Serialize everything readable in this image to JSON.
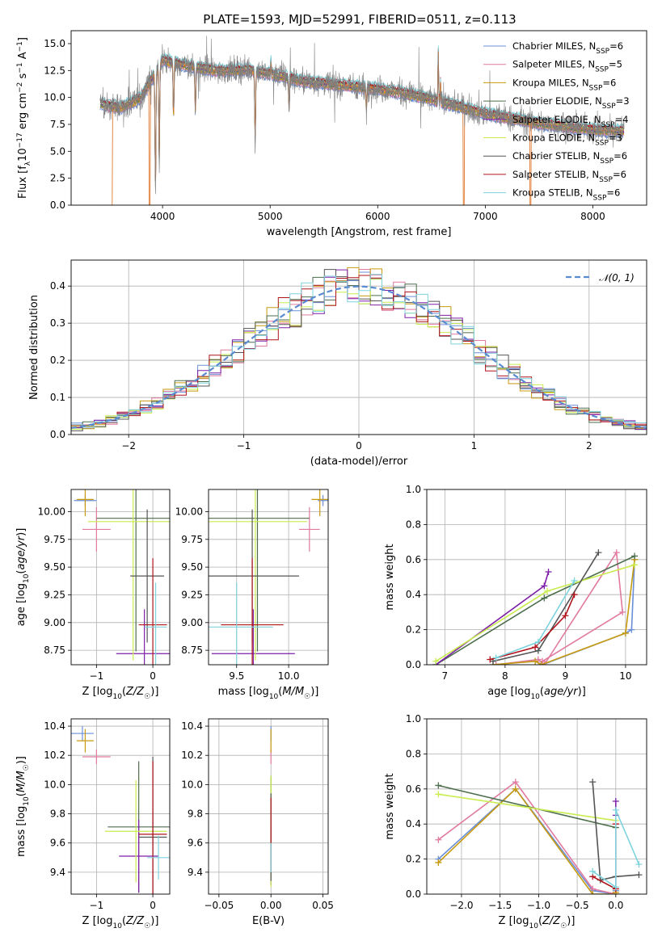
{
  "title": "PLATE=1593, MJD=52991, FIBERID=0511, z=0.113",
  "colors": {
    "Chabrier MILES": "#6b8fd6",
    "Salpeter MILES": "#e07aa0",
    "Kroupa MILES": "#c79a10",
    "Chabrier ELODIE": "#4d6e4d",
    "Salpeter ELODIE": "#7e1fa8",
    "Kroupa ELODIE": "#c9ec4f",
    "Chabrier STELIB": "#555555",
    "Salpeter STELIB": "#b0141b",
    "Kroupa STELIB": "#7fd3dd",
    "model_orange": "#e0782f",
    "data_gray": "#808080",
    "normal_curve": "#5b8bd0"
  },
  "chart_data": [
    {
      "id": "spectrum",
      "type": "line",
      "xlabel": "wavelength [Angstrom, rest frame]",
      "ylabel": "Flux [f_λ10^-17 erg cm^-2 s^-1 A^-1]",
      "xlim": [
        3150,
        8500
      ],
      "ylim": [
        0,
        16.2
      ],
      "xticks": [
        4000,
        5000,
        6000,
        7000,
        8000
      ],
      "yticks": [
        0.0,
        2.5,
        5.0,
        7.5,
        10.0,
        12.5,
        15.0
      ],
      "grid": false,
      "legend_position": "top-right",
      "legend": [
        {
          "main": "Chabrier MILES, N",
          "sub": "SSP",
          "tail": "=6"
        },
        {
          "main": "Salpeter MILES, N",
          "sub": "SSP",
          "tail": "=5"
        },
        {
          "main": "Kroupa MILES, N",
          "sub": "SSP",
          "tail": "=6"
        },
        {
          "main": "Chabrier ELODIE, N",
          "sub": "SSP",
          "tail": "=3"
        },
        {
          "main": "Salpeter ELODIE, N",
          "sub": "SSP",
          "tail": "=4"
        },
        {
          "main": "Kroupa ELODIE, N",
          "sub": "SSP",
          "tail": "=3"
        },
        {
          "main": "Chabrier STELIB, N",
          "sub": "SSP",
          "tail": "=6"
        },
        {
          "main": "Salpeter STELIB, N",
          "sub": "SSP",
          "tail": "=6"
        },
        {
          "main": "Kroupa STELIB, N",
          "sub": "SSP",
          "tail": "=6"
        }
      ],
      "continuum": [
        [
          3400,
          9.5
        ],
        [
          3600,
          9.0
        ],
        [
          3800,
          10.0
        ],
        [
          4000,
          13.5
        ],
        [
          4200,
          13.0
        ],
        [
          4500,
          12.5
        ],
        [
          4800,
          12.6
        ],
        [
          5000,
          12.2
        ],
        [
          5300,
          11.5
        ],
        [
          5600,
          11.2
        ],
        [
          6000,
          10.8
        ],
        [
          6300,
          10.3
        ],
        [
          6600,
          9.6
        ],
        [
          7000,
          8.5
        ],
        [
          7500,
          7.6
        ],
        [
          8000,
          7.0
        ],
        [
          8300,
          6.9
        ]
      ],
      "absorption_lines": [
        [
          3934,
          12.0
        ],
        [
          3969,
          9.5
        ],
        [
          4102,
          5.5
        ],
        [
          4305,
          4.5
        ],
        [
          4861,
          7.0
        ],
        [
          5176,
          3.0
        ],
        [
          5895,
          2.0
        ]
      ],
      "emission_lines": [
        [
          6563,
          5.5
        ],
        [
          6584,
          2.0
        ],
        [
          5007,
          1.5
        ]
      ],
      "model_dropouts": [
        3530,
        3880,
        6800,
        7420
      ]
    },
    {
      "id": "residuals",
      "type": "histogram",
      "xlabel": "(data-model)/error",
      "ylabel": "Normed distribution",
      "xlim": [
        -2.5,
        2.5
      ],
      "ylim": [
        0,
        0.47
      ],
      "xticks": [
        -2,
        -1,
        0,
        1,
        2
      ],
      "yticks": [
        0.0,
        0.1,
        0.2,
        0.3,
        0.4
      ],
      "grid": true,
      "legend_position": "top-right",
      "normal_label": "𝒩(0, 1)",
      "bin_width": 0.1
    },
    {
      "id": "age_vs_Z",
      "type": "errorbar",
      "xlabel": "Z [log10(Z/Z☉)]",
      "ylabel": "age [log10(age/yr)]",
      "xlim": [
        -1.45,
        0.3
      ],
      "ylim": [
        8.62,
        10.2
      ],
      "xticks": [
        -1,
        0
      ],
      "yticks": [
        8.75,
        9.0,
        9.25,
        9.5,
        9.75,
        10.0
      ],
      "grid": true,
      "series": [
        {
          "model": "Chabrier MILES",
          "x": -1.2,
          "xerr": 0.2,
          "y": 10.1,
          "yerr": 0.05
        },
        {
          "model": "Salpeter MILES",
          "x": -1.0,
          "xerr": 0.25,
          "y": 9.84,
          "yerr": 0.2
        },
        {
          "model": "Kroupa MILES",
          "x": -1.2,
          "xerr": 0.15,
          "y": 10.11,
          "yerr": 0.15
        },
        {
          "model": "Chabrier ELODIE",
          "x": -0.3,
          "xerr": 0.7,
          "y": 9.94,
          "yerr": 1.2
        },
        {
          "model": "Salpeter ELODIE",
          "x": -0.15,
          "xerr": 0.5,
          "y": 8.72,
          "yerr": 0.4
        },
        {
          "model": "Kroupa ELODIE",
          "x": -0.35,
          "xerr": 0.8,
          "y": 9.91,
          "yerr": 1.25
        },
        {
          "model": "Chabrier STELIB",
          "x": -0.1,
          "xerr": 0.3,
          "y": 9.42,
          "yerr": 0.6
        },
        {
          "model": "Salpeter STELIB",
          "x": 0.0,
          "xerr": 0.25,
          "y": 8.98,
          "yerr": 0.6
        },
        {
          "model": "Kroupa STELIB",
          "x": 0.05,
          "xerr": 0.2,
          "y": 8.96,
          "yerr": 0.4
        }
      ]
    },
    {
      "id": "age_vs_mass",
      "type": "errorbar",
      "xlabel": "mass [log10(M/M☉)]",
      "ylabel": "",
      "xlim": [
        9.23,
        10.38
      ],
      "ylim": [
        8.62,
        10.2
      ],
      "xticks": [
        9.5,
        10.0
      ],
      "yticks": [
        8.75,
        9.0,
        9.25,
        9.5,
        9.75,
        10.0
      ],
      "grid": true,
      "series": [
        {
          "model": "Chabrier MILES",
          "x": 10.33,
          "xerr": 0.05,
          "y": 10.1,
          "yerr": 0.05
        },
        {
          "model": "Salpeter MILES",
          "x": 10.2,
          "xerr": 0.1,
          "y": 9.84,
          "yerr": 0.2
        },
        {
          "model": "Kroupa MILES",
          "x": 10.3,
          "xerr": 0.08,
          "y": 10.11,
          "yerr": 0.15
        },
        {
          "model": "Chabrier ELODIE",
          "x": 9.7,
          "xerr": 0.5,
          "y": 9.94,
          "yerr": 1.2
        },
        {
          "model": "Salpeter ELODIE",
          "x": 9.66,
          "xerr": 0.4,
          "y": 8.72,
          "yerr": 0.4
        },
        {
          "model": "Kroupa ELODIE",
          "x": 9.68,
          "xerr": 0.5,
          "y": 9.91,
          "yerr": 1.25
        },
        {
          "model": "Chabrier STELIB",
          "x": 9.65,
          "xerr": 0.45,
          "y": 9.42,
          "yerr": 0.6
        },
        {
          "model": "Salpeter STELIB",
          "x": 9.65,
          "xerr": 0.3,
          "y": 8.98,
          "yerr": 0.6
        },
        {
          "model": "Kroupa STELIB",
          "x": 9.5,
          "xerr": 0.35,
          "y": 8.96,
          "yerr": 0.4
        }
      ]
    },
    {
      "id": "weight_vs_age",
      "type": "line",
      "xlabel": "age log10(age/yr)",
      "ylabel": "mass weight",
      "xlim": [
        6.7,
        10.35
      ],
      "ylim": [
        0,
        1.0
      ],
      "xticks": [
        7,
        8,
        9,
        10
      ],
      "yticks": [
        0.0,
        0.2,
        0.4,
        0.6,
        0.8,
        1.0
      ],
      "grid": true,
      "series": [
        {
          "model": "Chabrier MILES",
          "x": [
            7.8,
            8.5,
            8.62,
            10.0,
            10.1,
            10.15
          ],
          "y": [
            0.0,
            0.02,
            0.0,
            0.18,
            0.2,
            0.6
          ]
        },
        {
          "model": "Salpeter MILES",
          "x": [
            7.85,
            8.55,
            8.65,
            9.85,
            9.95,
            8.62
          ],
          "y": [
            0.0,
            0.03,
            0.0,
            0.64,
            0.3,
            0.02
          ]
        },
        {
          "model": "Kroupa MILES",
          "x": [
            7.8,
            8.5,
            8.6,
            10.0,
            10.15
          ],
          "y": [
            0.0,
            0.02,
            0.0,
            0.18,
            0.6
          ]
        },
        {
          "model": "Chabrier ELODIE",
          "x": [
            6.85,
            8.65,
            10.15
          ],
          "y": [
            0.0,
            0.38,
            0.62
          ]
        },
        {
          "model": "Salpeter ELODIE",
          "x": [
            6.85,
            8.65,
            8.72
          ],
          "y": [
            0.0,
            0.45,
            0.53
          ]
        },
        {
          "model": "Kroupa ELODIE",
          "x": [
            6.85,
            8.7,
            10.15
          ],
          "y": [
            0.02,
            0.42,
            0.57
          ]
        },
        {
          "model": "Chabrier STELIB",
          "x": [
            7.8,
            8.55,
            9.55
          ],
          "y": [
            0.02,
            0.08,
            0.64
          ]
        },
        {
          "model": "Salpeter STELIB",
          "x": [
            7.75,
            8.5,
            9.0,
            9.15
          ],
          "y": [
            0.03,
            0.1,
            0.28,
            0.4
          ]
        },
        {
          "model": "Kroupa STELIB",
          "x": [
            7.85,
            8.55,
            9.15
          ],
          "y": [
            0.04,
            0.13,
            0.48
          ]
        }
      ]
    },
    {
      "id": "mass_vs_Z",
      "type": "errorbar",
      "xlabel": "Z [log10(Z/Z☉)]",
      "ylabel": "mass [log10(M/M☉)]",
      "xlim": [
        -1.45,
        0.3
      ],
      "ylim": [
        9.25,
        10.45
      ],
      "xticks": [
        -1,
        0
      ],
      "yticks": [
        9.4,
        9.6,
        9.8,
        10.0,
        10.2,
        10.4
      ],
      "grid": true,
      "series": [
        {
          "model": "Chabrier MILES",
          "x": -1.25,
          "xerr": 0.2,
          "y": 10.35,
          "yerr": 0.05
        },
        {
          "model": "Salpeter MILES",
          "x": -1.0,
          "xerr": 0.25,
          "y": 10.19,
          "yerr": 0.05
        },
        {
          "model": "Kroupa MILES",
          "x": -1.2,
          "xerr": 0.15,
          "y": 10.3,
          "yerr": 0.08
        },
        {
          "model": "Chabrier ELODIE",
          "x": -0.25,
          "xerr": 0.55,
          "y": 9.71,
          "yerr": 0.45
        },
        {
          "model": "Salpeter ELODIE",
          "x": -0.25,
          "xerr": 0.35,
          "y": 9.51,
          "yerr": 0.25
        },
        {
          "model": "Kroupa ELODIE",
          "x": -0.3,
          "xerr": 0.55,
          "y": 9.68,
          "yerr": 0.35
        },
        {
          "model": "Chabrier STELIB",
          "x": 0.0,
          "xerr": 0.25,
          "y": 9.64,
          "yerr": 0.55
        },
        {
          "model": "Salpeter STELIB",
          "x": 0.0,
          "xerr": 0.25,
          "y": 9.66,
          "yerr": 0.5
        },
        {
          "model": "Kroupa STELIB",
          "x": 0.1,
          "xerr": 0.2,
          "y": 9.5,
          "yerr": 0.15
        }
      ]
    },
    {
      "id": "mass_vs_EBV",
      "type": "errorbar",
      "xlabel": "E(B-V)",
      "ylabel": "",
      "xlim": [
        -0.06,
        0.055
      ],
      "ylim": [
        9.25,
        10.45
      ],
      "xticks": [
        -0.05,
        0.0,
        0.05
      ],
      "xticklabels": [
        "−0.05",
        "0.00",
        "0.05"
      ],
      "yticks": [
        9.4,
        9.6,
        9.8,
        10.0,
        10.2,
        10.4
      ],
      "grid": true,
      "series": [
        {
          "model": "Chabrier MILES",
          "x": 0.0,
          "y": 10.35,
          "yerr": 0.05
        },
        {
          "model": "Salpeter MILES",
          "x": 0.0,
          "y": 10.19,
          "yerr": 0.05
        },
        {
          "model": "Kroupa MILES",
          "x": 0.0,
          "y": 10.3,
          "yerr": 0.08
        },
        {
          "model": "Chabrier ELODIE",
          "x": 0.0,
          "y": 9.71,
          "yerr": 0.35
        },
        {
          "model": "Salpeter ELODIE",
          "x": 0.0,
          "y": 9.51,
          "yerr": 0.2
        },
        {
          "model": "Kroupa ELODIE",
          "x": 0.0,
          "y": 9.68,
          "yerr": 0.38
        },
        {
          "model": "Chabrier STELIB",
          "x": 0.0,
          "y": 9.64,
          "yerr": 0.3
        },
        {
          "model": "Salpeter STELIB",
          "x": 0.0,
          "y": 9.66,
          "yerr": 0.25
        },
        {
          "model": "Kroupa STELIB",
          "x": 0.0,
          "y": 9.5,
          "yerr": 0.1
        }
      ]
    },
    {
      "id": "weight_vs_Z",
      "type": "line",
      "xlabel": "Z [log10(Z/Z☉)]",
      "ylabel": "mass weight",
      "xlim": [
        -2.45,
        0.4
      ],
      "ylim": [
        0,
        1.0
      ],
      "xticks": [
        -2.0,
        -1.5,
        -1.0,
        -0.5,
        0.0
      ],
      "xticklabels": [
        "−2.0",
        "−1.5",
        "−1.0",
        "−0.5",
        "0.0"
      ],
      "yticks": [
        0.0,
        0.2,
        0.4,
        0.6,
        0.8,
        1.0
      ],
      "grid": true,
      "series": [
        {
          "model": "Chabrier MILES",
          "x": [
            -2.3,
            -1.3,
            -0.3,
            0.0,
            0.0
          ],
          "y": [
            0.2,
            0.6,
            0.02,
            0.0,
            0.02
          ]
        },
        {
          "model": "Salpeter MILES",
          "x": [
            -2.3,
            -1.3,
            -0.3,
            0.0,
            0.0
          ],
          "y": [
            0.31,
            0.64,
            0.03,
            0.0,
            0.03
          ]
        },
        {
          "model": "Kroupa MILES",
          "x": [
            -2.3,
            -1.3,
            -0.3,
            0.0,
            0.0
          ],
          "y": [
            0.18,
            0.6,
            0.0,
            0.0,
            0.01
          ]
        },
        {
          "model": "Chabrier ELODIE",
          "x": [
            -2.3,
            0.0
          ],
          "y": [
            0.62,
            0.38
          ]
        },
        {
          "model": "Salpeter ELODIE",
          "x": [
            0.0,
            0.0
          ],
          "y": [
            0.45,
            0.53
          ]
        },
        {
          "model": "Kroupa ELODIE",
          "x": [
            -2.3,
            0.0
          ],
          "y": [
            0.57,
            0.42
          ]
        },
        {
          "model": "Chabrier STELIB",
          "x": [
            -0.3,
            -0.2,
            0.0,
            0.3
          ],
          "y": [
            0.64,
            0.08,
            0.1,
            0.11
          ]
        },
        {
          "model": "Salpeter STELIB",
          "x": [
            -0.3,
            0.0,
            0.0
          ],
          "y": [
            0.1,
            0.03,
            0.4
          ]
        },
        {
          "model": "Kroupa STELIB",
          "x": [
            -0.3,
            0.0,
            0.0,
            0.3
          ],
          "y": [
            0.13,
            0.04,
            0.48,
            0.17
          ]
        }
      ]
    }
  ]
}
